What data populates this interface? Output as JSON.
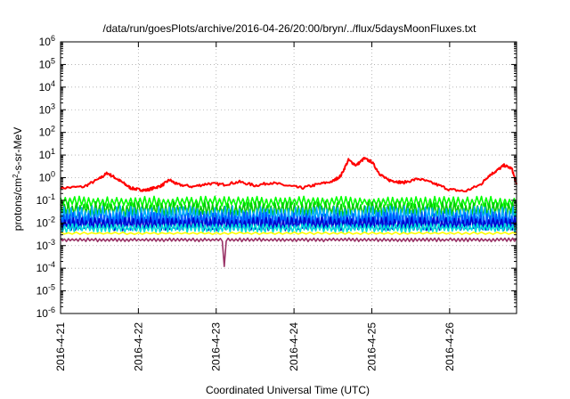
{
  "chart_data": {
    "type": "line",
    "title": "/data/run/goesPlots/archive/2016-04-26/20:00/bryn/../flux/5daysMoonFluxes.txt",
    "xlabel": "Coordinated Universal Time (UTC)",
    "ylabel_parts": [
      "protons/cm",
      "2",
      "-s-sr-MeV"
    ],
    "y_scale": "log",
    "ylim_exponents": [
      -6,
      6
    ],
    "y_ticks": [
      {
        "base": "10",
        "exp": "6"
      },
      {
        "base": "10",
        "exp": "5"
      },
      {
        "base": "10",
        "exp": "4"
      },
      {
        "base": "10",
        "exp": "3"
      },
      {
        "base": "10",
        "exp": "2"
      },
      {
        "base": "10",
        "exp": "1"
      },
      {
        "base": "10",
        "exp": "0"
      },
      {
        "base": "10",
        "exp": "-1"
      },
      {
        "base": "10",
        "exp": "-2"
      },
      {
        "base": "10",
        "exp": "-3"
      },
      {
        "base": "10",
        "exp": "-4"
      },
      {
        "base": "10",
        "exp": "-5"
      },
      {
        "base": "10",
        "exp": "-6"
      }
    ],
    "x_range_days": [
      21.0,
      26.86
    ],
    "x_ticks": [
      {
        "day": 21,
        "label": "2016-4-21"
      },
      {
        "day": 22,
        "label": "2016-4-22"
      },
      {
        "day": 23,
        "label": "2016-4-23"
      },
      {
        "day": 24,
        "label": "2016-4-24"
      },
      {
        "day": 25,
        "label": "2016-4-25"
      },
      {
        "day": 26,
        "label": "2016-4-26"
      }
    ],
    "grid": true,
    "series": [
      {
        "color": "#ff0000",
        "x": [
          21.0,
          21.3,
          21.5,
          21.6,
          21.7,
          21.8,
          21.9,
          22.0,
          22.1,
          22.2,
          22.3,
          22.4,
          22.5,
          22.7,
          22.9,
          23.1,
          23.3,
          23.5,
          23.7,
          23.9,
          24.1,
          24.3,
          24.5,
          24.6,
          24.7,
          24.8,
          24.9,
          25.0,
          25.1,
          25.2,
          25.3,
          25.4,
          25.6,
          25.8,
          26.0,
          26.2,
          26.4,
          26.5,
          26.6,
          26.7,
          26.8,
          26.86
        ],
        "y": [
          0.35,
          0.4,
          0.9,
          1.6,
          1.0,
          0.6,
          0.35,
          0.3,
          0.28,
          0.35,
          0.45,
          0.8,
          0.5,
          0.4,
          0.55,
          0.5,
          0.65,
          0.45,
          0.6,
          0.45,
          0.35,
          0.5,
          0.7,
          1.2,
          6.0,
          3.5,
          7.0,
          5.0,
          1.5,
          0.8,
          0.7,
          0.6,
          0.9,
          0.55,
          0.3,
          0.25,
          0.5,
          1.2,
          2.0,
          3.5,
          2.5,
          0.5
        ]
      },
      {
        "color": "#00ff00",
        "base": 0.085,
        "amp": 0.25,
        "period": 0.06
      },
      {
        "color": "#00cc00",
        "base": 0.04,
        "amp": 0.35,
        "period": 0.05
      },
      {
        "color": "#00aaff",
        "base": 0.02,
        "amp": 0.45,
        "period": 0.045
      },
      {
        "color": "#0055ff",
        "base": 0.012,
        "amp": 0.4,
        "period": 0.04
      },
      {
        "color": "#0000cc",
        "base": 0.009,
        "amp": 0.3,
        "period": 0.055
      },
      {
        "color": "#00dddd",
        "base": 0.006,
        "amp": 0.2,
        "period": 0.05
      },
      {
        "color": "#ffff00",
        "base": 0.0035,
        "amp": 0.05,
        "period": 0.1
      },
      {
        "color": "#993366",
        "base": 0.0018,
        "amp": 0.08,
        "period": 0.05,
        "dip": {
          "day": 23.1,
          "value": 0.00012
        }
      }
    ]
  }
}
